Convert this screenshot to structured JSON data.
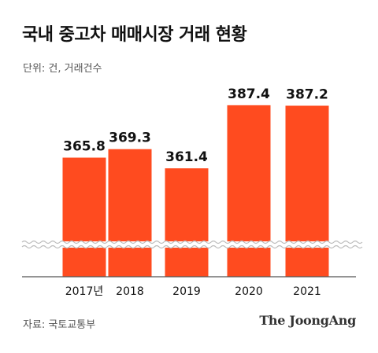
{
  "header": {
    "title": "국내 중고차 매매시장 거래 현황",
    "unit": "단위: 건, 거래건수"
  },
  "footer": {
    "source": "자료: 국토교통부",
    "logo": "The JoongAng"
  },
  "colors": {
    "bar": "#ff4b1f",
    "axis": "#555555",
    "break_line": "#bbbbbb",
    "text": "#111111"
  },
  "chart_data": {
    "type": "bar",
    "categories": [
      "2017년",
      "2018",
      "2019",
      "2020",
      "2021"
    ],
    "values": [
      365.8,
      369.3,
      361.4,
      387.4,
      387.2
    ],
    "value_labels": [
      "365.8",
      "369.3",
      "361.4",
      "387.4",
      "387.2"
    ],
    "title": "국내 중고차 매매시장 거래 현황",
    "xlabel": "",
    "ylabel": "",
    "axis_break": true,
    "ylim": [
      0,
      400
    ],
    "grid": false,
    "legend": "none"
  }
}
